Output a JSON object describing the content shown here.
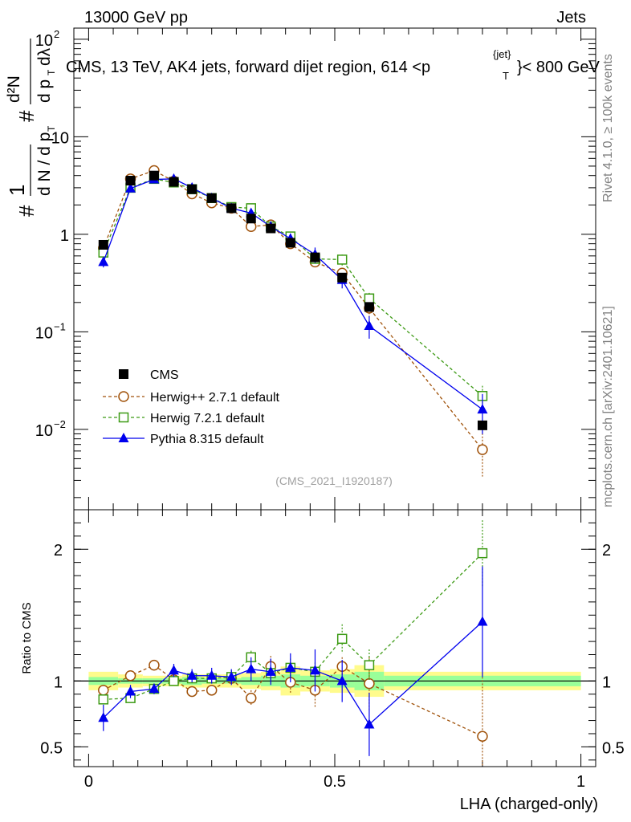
{
  "header": {
    "left": "13000 GeV pp",
    "right": "Jets",
    "title": "CMS, 13 TeV, AK4 jets, forward dijet region, 614 <p",
    "title_sup": "{jet}",
    "title_sub": "T",
    "title_end": "}< 800 GeV"
  },
  "side_labels": {
    "rivet": "Rivet 4.1.0, ≥ 100k events",
    "mcplots": "mcplots.cern.ch [arXiv:2401.10621]"
  },
  "watermark": "(CMS_2021_I1920187)",
  "axis": {
    "xlabel": "LHA (charged-only)",
    "ratio_ylabel": "Ratio to CMS",
    "main_ylabel": "# 1/dN/dp_T # d²N/dp_T dλ"
  },
  "colors": {
    "cms": "#000000",
    "herwigpp": "#a0520a",
    "herwig7": "#3c9a14",
    "pythia": "#0000ee",
    "band_outer": "#fffb8c",
    "band_inner": "#99ff99"
  },
  "chart_data": {
    "type": "scatter",
    "main": {
      "yscale": "log",
      "ylim": [
        0.0015,
        130
      ],
      "yticks": [
        {
          "value": 0.01,
          "base": "10",
          "exp": "−2"
        },
        {
          "value": 0.1,
          "base": "10",
          "exp": "−1"
        },
        {
          "value": 1,
          "base": "1",
          "exp": ""
        },
        {
          "value": 10,
          "base": "10",
          "exp": ""
        },
        {
          "value": 100,
          "base": "10",
          "exp": "2"
        }
      ]
    },
    "ratio": {
      "ylim": [
        0.35,
        2.3
      ],
      "yticks": [
        {
          "value": 0.5,
          "label": "0.5"
        },
        {
          "value": 1,
          "label": "1"
        },
        {
          "value": 2,
          "label": "2"
        }
      ]
    },
    "xlim": [
      -0.03,
      1.03
    ],
    "xticks": [
      {
        "value": 0,
        "label": "0"
      },
      {
        "value": 0.5,
        "label": "0.5"
      },
      {
        "value": 1,
        "label": "1"
      }
    ],
    "bins": [
      0,
      0.06,
      0.11,
      0.155,
      0.19,
      0.23,
      0.27,
      0.31,
      0.35,
      0.39,
      0.43,
      0.49,
      0.54,
      0.6,
      1.0
    ],
    "band_outer": [
      0.07,
      0.05,
      0.04,
      0.04,
      0.05,
      0.05,
      0.05,
      0.06,
      0.07,
      0.11,
      0.08,
      0.09,
      0.12,
      0.07
    ],
    "band_inner": [
      0.03,
      0.02,
      0.02,
      0.02,
      0.03,
      0.02,
      0.02,
      0.03,
      0.04,
      0.05,
      0.04,
      0.05,
      0.07,
      0.04
    ],
    "x": [
      0.03,
      0.085,
      0.133,
      0.173,
      0.21,
      0.25,
      0.29,
      0.33,
      0.37,
      0.41,
      0.46,
      0.515,
      0.57,
      0.8
    ],
    "series": [
      {
        "name": "CMS",
        "key": "cms",
        "marker": "square-filled",
        "values": [
          0.78,
          3.55,
          4.0,
          3.45,
          2.9,
          2.35,
          1.85,
          1.45,
          1.15,
          0.82,
          0.58,
          0.36,
          0.18,
          0.011
        ],
        "ratio": [
          1,
          1,
          1,
          1,
          1,
          1,
          1,
          1,
          1,
          1,
          1,
          1,
          1,
          1
        ],
        "ratio_err": [
          0,
          0,
          0,
          0,
          0,
          0,
          0,
          0,
          0,
          0,
          0,
          0,
          0,
          0
        ]
      },
      {
        "name": "Herwig++ 2.7.1 default",
        "key": "herwigpp",
        "marker": "circle-open",
        "line": "dashed",
        "values": [
          0.72,
          3.7,
          4.5,
          3.5,
          2.6,
          2.1,
          1.85,
          1.2,
          1.25,
          0.8,
          0.52,
          0.4,
          0.175,
          0.0062
        ],
        "ratio": [
          0.93,
          1.04,
          1.12,
          1.01,
          0.92,
          0.93,
          1.02,
          0.87,
          1.11,
          0.99,
          0.93,
          1.11,
          0.98,
          0.58
        ],
        "ratio_err": [
          0.04,
          0.04,
          0.04,
          0.04,
          0.04,
          0.04,
          0.05,
          0.06,
          0.08,
          0.08,
          0.13,
          0.07,
          0.2,
          0.45
        ]
      },
      {
        "name": "Herwig 7.2.1 default",
        "key": "herwig7",
        "marker": "square-open",
        "line": "dashed",
        "values": [
          0.65,
          3.0,
          3.7,
          3.4,
          2.9,
          2.35,
          1.9,
          1.85,
          1.2,
          0.95,
          0.56,
          0.55,
          0.22,
          0.022
        ],
        "ratio": [
          0.86,
          0.87,
          0.94,
          1.0,
          1.02,
          1.02,
          1.03,
          1.18,
          1.06,
          1.1,
          1.07,
          1.32,
          1.12,
          1.97
        ],
        "ratio_err": [
          0.03,
          0.03,
          0.03,
          0.03,
          0.03,
          0.03,
          0.05,
          0.05,
          0.06,
          0.07,
          0.07,
          0.11,
          0.12,
          0.25
        ]
      },
      {
        "name": "Pythia 8.315 default",
        "key": "pythia",
        "marker": "triangle-filled",
        "line": "solid",
        "values": [
          0.52,
          2.95,
          3.65,
          3.7,
          3.0,
          2.35,
          1.85,
          1.65,
          1.2,
          0.9,
          0.62,
          0.34,
          0.115,
          0.016
        ],
        "ratio": [
          0.72,
          0.92,
          0.94,
          1.08,
          1.04,
          1.04,
          1.03,
          1.09,
          1.07,
          1.1,
          1.08,
          1.0,
          0.67,
          1.45
        ],
        "ratio_err": [
          0.1,
          0.05,
          0.04,
          0.05,
          0.05,
          0.06,
          0.06,
          0.09,
          0.1,
          0.11,
          0.16,
          0.16,
          0.24,
          0.42
        ]
      }
    ]
  }
}
